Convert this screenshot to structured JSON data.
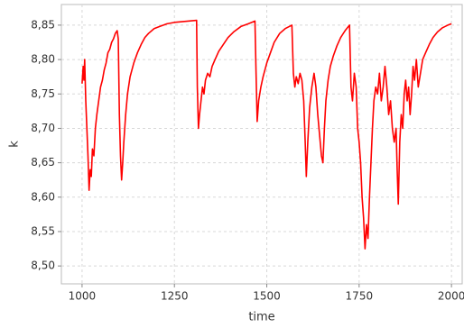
{
  "chart_data": {
    "type": "line",
    "x_label": "time",
    "y_label": "k",
    "xlim": [
      944,
      2029
    ],
    "ylim": [
      8.474,
      8.88
    ],
    "xticks": [
      1000,
      1250,
      1500,
      1750,
      2000
    ],
    "yticks": [
      {
        "value": 8.5,
        "label": "8,50"
      },
      {
        "value": 8.55,
        "label": "8,55"
      },
      {
        "value": 8.6,
        "label": "8,60"
      },
      {
        "value": 8.65,
        "label": "8,65"
      },
      {
        "value": 8.7,
        "label": "8,70"
      },
      {
        "value": 8.75,
        "label": "8,75"
      },
      {
        "value": 8.8,
        "label": "8,80"
      },
      {
        "value": 8.85,
        "label": "8,85"
      }
    ],
    "grid": true,
    "x": [
      1000,
      1003,
      1005,
      1007,
      1010,
      1013,
      1016,
      1019,
      1022,
      1025,
      1028,
      1032,
      1036,
      1040,
      1045,
      1050,
      1055,
      1060,
      1065,
      1070,
      1075,
      1080,
      1085,
      1090,
      1095,
      1098,
      1101,
      1104,
      1107,
      1110,
      1113,
      1118,
      1123,
      1130,
      1140,
      1150,
      1160,
      1170,
      1180,
      1195,
      1210,
      1230,
      1250,
      1270,
      1290,
      1310,
      1312,
      1315,
      1318,
      1322,
      1326,
      1330,
      1334,
      1340,
      1346,
      1352,
      1360,
      1370,
      1380,
      1395,
      1410,
      1430,
      1450,
      1468,
      1471,
      1474,
      1478,
      1484,
      1490,
      1500,
      1510,
      1520,
      1535,
      1550,
      1568,
      1572,
      1576,
      1580,
      1585,
      1590,
      1595,
      1600,
      1604,
      1607,
      1611,
      1616,
      1622,
      1628,
      1633,
      1638,
      1643,
      1648,
      1652,
      1656,
      1660,
      1666,
      1672,
      1680,
      1690,
      1700,
      1712,
      1724,
      1728,
      1732,
      1737,
      1742,
      1746,
      1750,
      1754,
      1758,
      1762,
      1766,
      1770,
      1774,
      1778,
      1782,
      1786,
      1790,
      1795,
      1800,
      1805,
      1810,
      1815,
      1820,
      1825,
      1830,
      1835,
      1840,
      1845,
      1850,
      1853,
      1856,
      1860,
      1864,
      1868,
      1872,
      1876,
      1880,
      1884,
      1888,
      1892,
      1896,
      1900,
      1905,
      1910,
      1916,
      1922,
      1930,
      1940,
      1950,
      1962,
      1975,
      1990,
      2000
    ],
    "series": [
      {
        "color": "#ff0000",
        "values": [
          8.765,
          8.79,
          8.77,
          8.8,
          8.74,
          8.7,
          8.66,
          8.61,
          8.64,
          8.63,
          8.67,
          8.66,
          8.7,
          8.72,
          8.74,
          8.76,
          8.77,
          8.785,
          8.795,
          8.81,
          8.815,
          8.825,
          8.83,
          8.838,
          8.842,
          8.83,
          8.72,
          8.66,
          8.625,
          8.65,
          8.68,
          8.72,
          8.75,
          8.775,
          8.795,
          8.81,
          8.822,
          8.832,
          8.838,
          8.845,
          8.848,
          8.852,
          8.854,
          8.855,
          8.856,
          8.857,
          8.76,
          8.7,
          8.72,
          8.74,
          8.76,
          8.75,
          8.77,
          8.78,
          8.775,
          8.79,
          8.8,
          8.812,
          8.82,
          8.832,
          8.84,
          8.848,
          8.852,
          8.856,
          8.78,
          8.71,
          8.74,
          8.76,
          8.775,
          8.795,
          8.81,
          8.825,
          8.838,
          8.845,
          8.85,
          8.78,
          8.76,
          8.775,
          8.765,
          8.78,
          8.77,
          8.74,
          8.68,
          8.63,
          8.68,
          8.73,
          8.76,
          8.78,
          8.76,
          8.72,
          8.69,
          8.66,
          8.65,
          8.7,
          8.74,
          8.77,
          8.79,
          8.805,
          8.82,
          8.832,
          8.842,
          8.85,
          8.76,
          8.74,
          8.78,
          8.76,
          8.7,
          8.68,
          8.65,
          8.6,
          8.57,
          8.525,
          8.56,
          8.54,
          8.6,
          8.65,
          8.7,
          8.74,
          8.76,
          8.75,
          8.78,
          8.74,
          8.76,
          8.79,
          8.76,
          8.72,
          8.74,
          8.7,
          8.68,
          8.7,
          8.64,
          8.59,
          8.68,
          8.72,
          8.7,
          8.75,
          8.77,
          8.74,
          8.76,
          8.72,
          8.75,
          8.79,
          8.77,
          8.8,
          8.76,
          8.78,
          8.8,
          8.81,
          8.822,
          8.832,
          8.84,
          8.846,
          8.85,
          8.852
        ]
      }
    ]
  }
}
